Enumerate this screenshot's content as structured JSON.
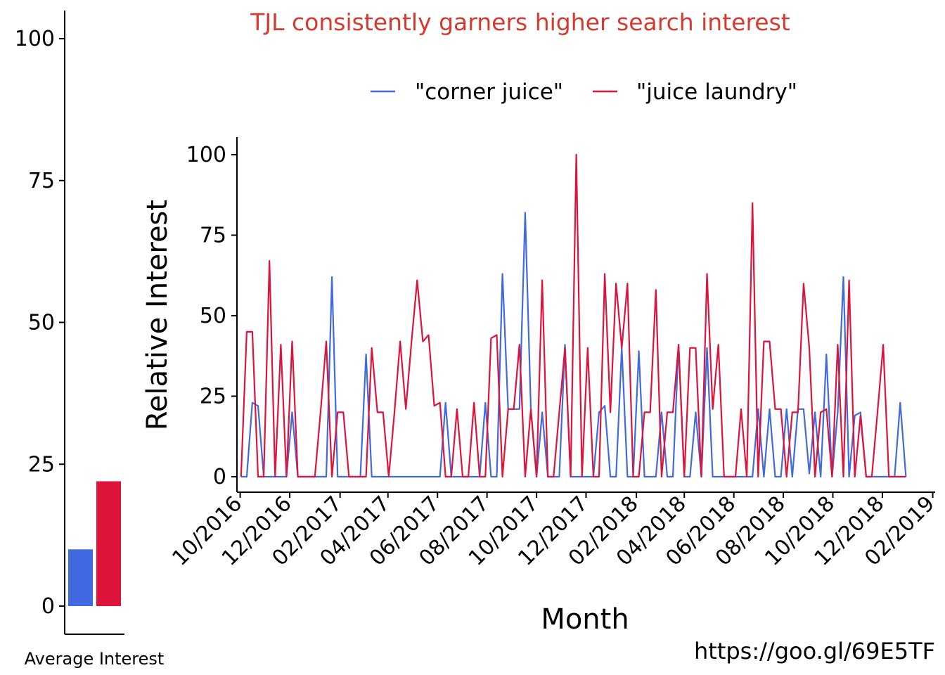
{
  "chart_data": [
    {
      "type": "bar",
      "xlabel": "Average Interest",
      "ylim": [
        0,
        100
      ],
      "yticks": [
        "0",
        "25",
        "50",
        "75",
        "100"
      ],
      "categories": [
        "\"corner juice\"",
        "\"juice laundry\""
      ],
      "values": [
        10,
        22
      ],
      "colors": [
        "#4169E1",
        "#DC143C"
      ]
    },
    {
      "type": "line",
      "title": "TJL consistently garners higher search interest",
      "title_color": "#D63A2F",
      "xlabel": "Month",
      "ylabel": "Relative Interest",
      "ylim": [
        0,
        100
      ],
      "yticks": [
        "0",
        "25",
        "50",
        "75",
        "100"
      ],
      "xlim": [
        "2016-09-27",
        "2019-02-04"
      ],
      "xticks": [
        "10/2016",
        "12/2016",
        "02/2017",
        "04/2017",
        "06/2017",
        "08/2017",
        "10/2017",
        "12/2017",
        "02/2018",
        "04/2018",
        "06/2018",
        "08/2018",
        "10/2018",
        "12/2018",
        "02/2019"
      ],
      "xtick_dates": [
        "2016-10-01",
        "2016-12-01",
        "2017-02-01",
        "2017-04-01",
        "2017-06-01",
        "2017-08-01",
        "2017-10-01",
        "2017-12-01",
        "2018-02-01",
        "2018-04-01",
        "2018-06-01",
        "2018-08-01",
        "2018-10-01",
        "2018-12-01",
        "2019-02-01"
      ],
      "legend_position": "top",
      "grid": false,
      "series": [
        {
          "name": "\"corner juice\"",
          "color": "#4169E1",
          "points": [
            [
              "2016-10-02",
              0
            ],
            [
              "2016-10-09",
              0
            ],
            [
              "2016-10-16",
              23
            ],
            [
              "2016-10-23",
              22
            ],
            [
              "2016-10-30",
              0
            ],
            [
              "2016-11-06",
              0
            ],
            [
              "2016-11-13",
              0
            ],
            [
              "2016-11-20",
              0
            ],
            [
              "2016-11-27",
              0
            ],
            [
              "2016-12-04",
              20
            ],
            [
              "2016-12-11",
              0
            ],
            [
              "2016-12-18",
              0
            ],
            [
              "2016-12-25",
              0
            ],
            [
              "2017-01-01",
              0
            ],
            [
              "2017-01-08",
              0
            ],
            [
              "2017-01-15",
              0
            ],
            [
              "2017-01-22",
              62
            ],
            [
              "2017-01-29",
              0
            ],
            [
              "2017-02-05",
              0
            ],
            [
              "2017-02-12",
              0
            ],
            [
              "2017-02-19",
              0
            ],
            [
              "2017-02-26",
              0
            ],
            [
              "2017-03-05",
              38
            ],
            [
              "2017-03-12",
              0
            ],
            [
              "2017-03-19",
              0
            ],
            [
              "2017-03-26",
              0
            ],
            [
              "2017-04-02",
              0
            ],
            [
              "2017-04-09",
              0
            ],
            [
              "2017-04-16",
              0
            ],
            [
              "2017-04-23",
              0
            ],
            [
              "2017-04-30",
              0
            ],
            [
              "2017-05-07",
              0
            ],
            [
              "2017-05-14",
              0
            ],
            [
              "2017-05-21",
              0
            ],
            [
              "2017-05-28",
              0
            ],
            [
              "2017-06-04",
              0
            ],
            [
              "2017-06-11",
              23
            ],
            [
              "2017-06-18",
              0
            ],
            [
              "2017-06-25",
              0
            ],
            [
              "2017-07-02",
              0
            ],
            [
              "2017-07-09",
              0
            ],
            [
              "2017-07-16",
              0
            ],
            [
              "2017-07-23",
              0
            ],
            [
              "2017-07-30",
              23
            ],
            [
              "2017-08-06",
              0
            ],
            [
              "2017-08-13",
              0
            ],
            [
              "2017-08-20",
              63
            ],
            [
              "2017-08-27",
              21
            ],
            [
              "2017-09-03",
              21
            ],
            [
              "2017-09-10",
              21
            ],
            [
              "2017-09-17",
              82
            ],
            [
              "2017-09-24",
              21
            ],
            [
              "2017-10-01",
              0
            ],
            [
              "2017-10-08",
              20
            ],
            [
              "2017-10-15",
              0
            ],
            [
              "2017-10-22",
              0
            ],
            [
              "2017-10-29",
              0
            ],
            [
              "2017-11-05",
              41
            ],
            [
              "2017-11-12",
              0
            ],
            [
              "2017-11-19",
              0
            ],
            [
              "2017-11-26",
              0
            ],
            [
              "2017-12-03",
              0
            ],
            [
              "2017-12-10",
              0
            ],
            [
              "2017-12-17",
              20
            ],
            [
              "2017-12-24",
              22
            ],
            [
              "2017-12-31",
              0
            ],
            [
              "2018-01-07",
              0
            ],
            [
              "2018-01-14",
              40
            ],
            [
              "2018-01-21",
              0
            ],
            [
              "2018-01-28",
              0
            ],
            [
              "2018-02-04",
              39
            ],
            [
              "2018-02-11",
              0
            ],
            [
              "2018-02-18",
              0
            ],
            [
              "2018-02-25",
              0
            ],
            [
              "2018-03-04",
              20
            ],
            [
              "2018-03-11",
              0
            ],
            [
              "2018-03-18",
              0
            ],
            [
              "2018-03-25",
              41
            ],
            [
              "2018-04-01",
              0
            ],
            [
              "2018-04-08",
              0
            ],
            [
              "2018-04-15",
              20
            ],
            [
              "2018-04-22",
              0
            ],
            [
              "2018-04-29",
              40
            ],
            [
              "2018-05-06",
              0
            ],
            [
              "2018-05-13",
              0
            ],
            [
              "2018-05-20",
              0
            ],
            [
              "2018-05-27",
              0
            ],
            [
              "2018-06-03",
              0
            ],
            [
              "2018-06-10",
              0
            ],
            [
              "2018-06-17",
              0
            ],
            [
              "2018-06-24",
              0
            ],
            [
              "2018-07-01",
              21
            ],
            [
              "2018-07-08",
              0
            ],
            [
              "2018-07-15",
              21
            ],
            [
              "2018-07-22",
              0
            ],
            [
              "2018-07-29",
              0
            ],
            [
              "2018-08-05",
              21
            ],
            [
              "2018-08-12",
              0
            ],
            [
              "2018-08-19",
              21
            ],
            [
              "2018-08-26",
              21
            ],
            [
              "2018-09-02",
              1
            ],
            [
              "2018-09-09",
              20
            ],
            [
              "2018-09-16",
              0
            ],
            [
              "2018-09-23",
              38
            ],
            [
              "2018-09-30",
              0
            ],
            [
              "2018-10-07",
              20
            ],
            [
              "2018-10-14",
              62
            ],
            [
              "2018-10-21",
              0
            ],
            [
              "2018-10-28",
              19
            ],
            [
              "2018-11-04",
              20
            ],
            [
              "2018-11-11",
              0
            ],
            [
              "2018-11-18",
              0
            ],
            [
              "2018-11-25",
              0
            ],
            [
              "2018-12-02",
              0
            ],
            [
              "2018-12-09",
              0
            ],
            [
              "2018-12-16",
              0
            ],
            [
              "2018-12-23",
              23
            ],
            [
              "2018-12-30",
              0
            ]
          ]
        },
        {
          "name": "\"juice laundry\"",
          "color": "#DC143C",
          "points": [
            [
              "2016-10-02",
              0
            ],
            [
              "2016-10-09",
              45
            ],
            [
              "2016-10-16",
              45
            ],
            [
              "2016-10-23",
              0
            ],
            [
              "2016-10-30",
              0
            ],
            [
              "2016-11-06",
              67
            ],
            [
              "2016-11-13",
              0
            ],
            [
              "2016-11-20",
              41
            ],
            [
              "2016-11-27",
              0
            ],
            [
              "2016-12-04",
              42
            ],
            [
              "2016-12-11",
              0
            ],
            [
              "2016-12-18",
              0
            ],
            [
              "2016-12-25",
              0
            ],
            [
              "2017-01-01",
              0
            ],
            [
              "2017-01-08",
              20
            ],
            [
              "2017-01-15",
              42
            ],
            [
              "2017-01-22",
              0
            ],
            [
              "2017-01-29",
              20
            ],
            [
              "2017-02-05",
              20
            ],
            [
              "2017-02-12",
              0
            ],
            [
              "2017-02-19",
              0
            ],
            [
              "2017-02-26",
              0
            ],
            [
              "2017-03-05",
              0
            ],
            [
              "2017-03-12",
              40
            ],
            [
              "2017-03-19",
              20
            ],
            [
              "2017-03-26",
              20
            ],
            [
              "2017-04-02",
              0
            ],
            [
              "2017-04-09",
              20
            ],
            [
              "2017-04-16",
              42
            ],
            [
              "2017-04-23",
              21
            ],
            [
              "2017-04-30",
              42
            ],
            [
              "2017-05-07",
              61
            ],
            [
              "2017-05-14",
              42
            ],
            [
              "2017-05-21",
              44
            ],
            [
              "2017-05-28",
              22
            ],
            [
              "2017-06-04",
              23
            ],
            [
              "2017-06-11",
              0
            ],
            [
              "2017-06-18",
              0
            ],
            [
              "2017-06-25",
              21
            ],
            [
              "2017-07-02",
              0
            ],
            [
              "2017-07-09",
              0
            ],
            [
              "2017-07-16",
              23
            ],
            [
              "2017-07-23",
              0
            ],
            [
              "2017-07-30",
              0
            ],
            [
              "2017-08-06",
              43
            ],
            [
              "2017-08-13",
              44
            ],
            [
              "2017-08-20",
              0
            ],
            [
              "2017-08-27",
              21
            ],
            [
              "2017-09-03",
              21
            ],
            [
              "2017-09-10",
              41
            ],
            [
              "2017-09-17",
              0
            ],
            [
              "2017-09-24",
              21
            ],
            [
              "2017-10-01",
              0
            ],
            [
              "2017-10-08",
              61
            ],
            [
              "2017-10-15",
              0
            ],
            [
              "2017-10-22",
              0
            ],
            [
              "2017-10-29",
              20
            ],
            [
              "2017-11-05",
              40
            ],
            [
              "2017-11-12",
              0
            ],
            [
              "2017-11-19",
              100
            ],
            [
              "2017-11-26",
              0
            ],
            [
              "2017-12-03",
              40
            ],
            [
              "2017-12-10",
              0
            ],
            [
              "2017-12-17",
              0
            ],
            [
              "2017-12-24",
              63
            ],
            [
              "2017-12-31",
              20
            ],
            [
              "2018-01-07",
              60
            ],
            [
              "2018-01-14",
              40
            ],
            [
              "2018-01-21",
              60
            ],
            [
              "2018-01-28",
              0
            ],
            [
              "2018-02-04",
              0
            ],
            [
              "2018-02-11",
              20
            ],
            [
              "2018-02-18",
              20
            ],
            [
              "2018-02-25",
              58
            ],
            [
              "2018-03-04",
              0
            ],
            [
              "2018-03-11",
              20
            ],
            [
              "2018-03-18",
              20
            ],
            [
              "2018-03-25",
              41
            ],
            [
              "2018-04-01",
              0
            ],
            [
              "2018-04-08",
              40
            ],
            [
              "2018-04-15",
              40
            ],
            [
              "2018-04-22",
              0
            ],
            [
              "2018-04-29",
              63
            ],
            [
              "2018-05-06",
              21
            ],
            [
              "2018-05-13",
              41
            ],
            [
              "2018-05-20",
              0
            ],
            [
              "2018-05-27",
              0
            ],
            [
              "2018-06-03",
              0
            ],
            [
              "2018-06-10",
              21
            ],
            [
              "2018-06-17",
              0
            ],
            [
              "2018-06-24",
              85
            ],
            [
              "2018-07-01",
              0
            ],
            [
              "2018-07-08",
              42
            ],
            [
              "2018-07-15",
              42
            ],
            [
              "2018-07-22",
              21
            ],
            [
              "2018-07-29",
              21
            ],
            [
              "2018-08-05",
              0
            ],
            [
              "2018-08-12",
              20
            ],
            [
              "2018-08-19",
              20
            ],
            [
              "2018-08-26",
              60
            ],
            [
              "2018-09-02",
              40
            ],
            [
              "2018-09-09",
              0
            ],
            [
              "2018-09-16",
              20
            ],
            [
              "2018-09-23",
              21
            ],
            [
              "2018-09-30",
              0
            ],
            [
              "2018-10-07",
              41
            ],
            [
              "2018-10-14",
              0
            ],
            [
              "2018-10-21",
              61
            ],
            [
              "2018-10-28",
              0
            ],
            [
              "2018-11-04",
              19
            ],
            [
              "2018-11-11",
              0
            ],
            [
              "2018-11-18",
              0
            ],
            [
              "2018-11-25",
              20
            ],
            [
              "2018-12-02",
              41
            ],
            [
              "2018-12-09",
              0
            ],
            [
              "2018-12-16",
              0
            ],
            [
              "2018-12-23",
              0
            ],
            [
              "2018-12-30",
              0
            ]
          ]
        }
      ]
    }
  ],
  "source_text": "https://goo.gl/69E5TF"
}
